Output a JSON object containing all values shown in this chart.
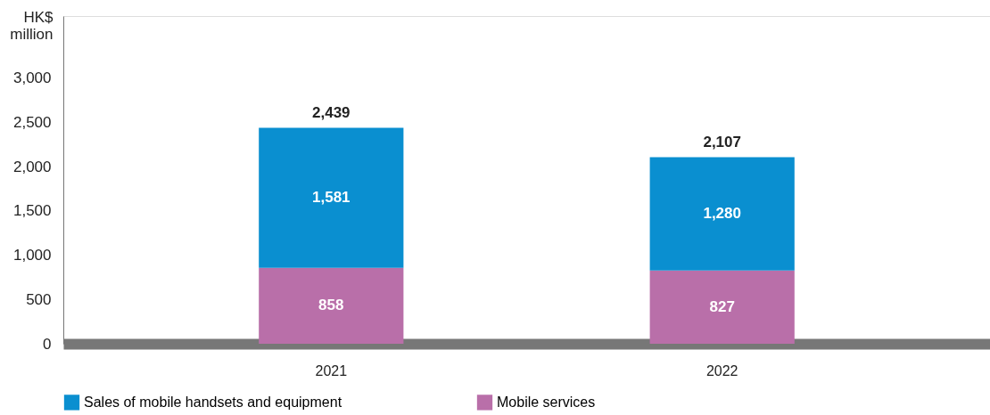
{
  "chart_data": {
    "type": "bar",
    "stacked": true,
    "ylabel": "HK$ million",
    "categories": [
      "2021",
      "2022"
    ],
    "series": [
      {
        "name": "Mobile services",
        "color": "#b96fa9",
        "values": [
          858,
          827
        ],
        "value_labels": [
          "858",
          "827"
        ]
      },
      {
        "name": "Sales of mobile handsets and equipment",
        "color": "#0a8fd0",
        "values": [
          1581,
          1280
        ],
        "value_labels": [
          "1,581",
          "1,280"
        ]
      }
    ],
    "totals": [
      "2,439",
      "2,107"
    ],
    "ylim": [
      0,
      3700
    ],
    "yticks": [
      0,
      500,
      {
        "value": 1000,
        "label": "1,000"
      },
      {
        "value": 1500,
        "label": "1,500"
      },
      {
        "value": 2000,
        "label": "2,000"
      },
      {
        "value": 2500,
        "label": "2,500"
      },
      {
        "value": 3000,
        "label": "3,000"
      }
    ],
    "grid": false,
    "legend": "bottom"
  }
}
